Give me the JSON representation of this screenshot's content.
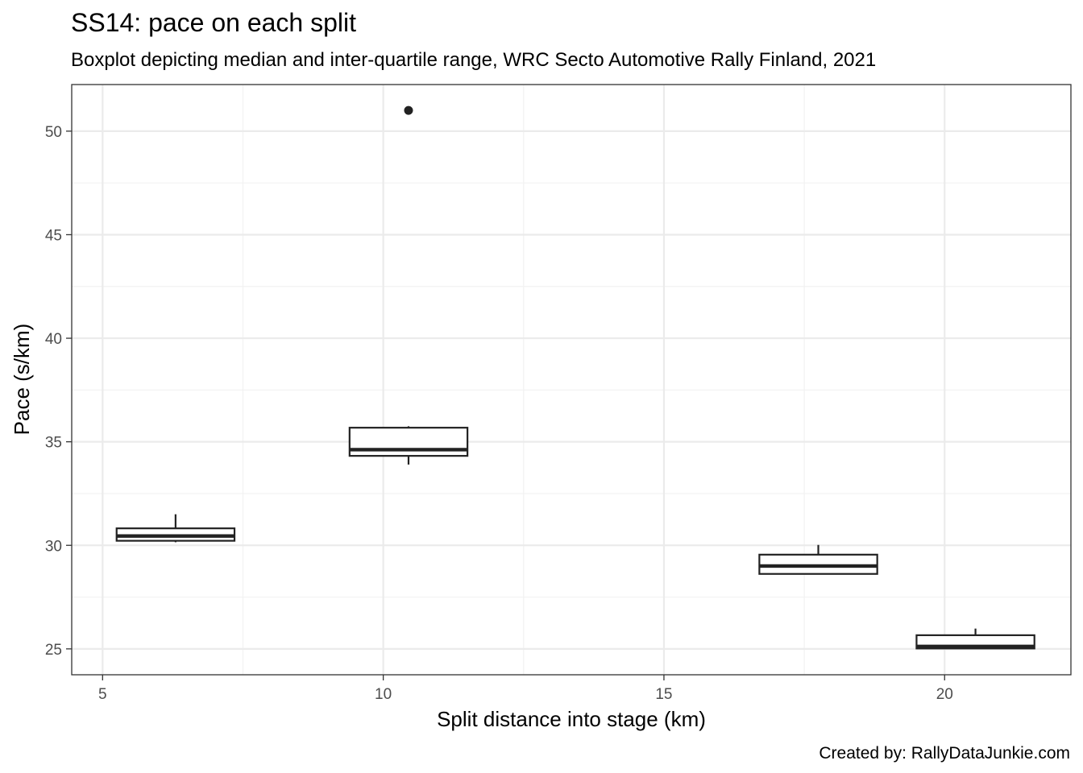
{
  "chart_data": {
    "type": "boxplot",
    "title": "SS14: pace on each split",
    "subtitle": "Boxplot depicting median and inter-quartile range, WRC Secto Automotive Rally Finland, 2021",
    "xlabel": "Split distance into stage (km)",
    "ylabel": "Pace (s/km)",
    "caption": "Created by: RallyDataJunkie.com",
    "xlim": [
      4.45,
      22.25
    ],
    "ylim": [
      23.75,
      52.25
    ],
    "x_ticks": [
      5,
      10,
      15,
      20
    ],
    "y_ticks": [
      25,
      30,
      35,
      40,
      45,
      50
    ],
    "grid": true,
    "boxes": [
      {
        "x": 6.3,
        "width": 2.1,
        "lower_whisker": 30.15,
        "q1": 30.22,
        "median": 30.45,
        "q3": 30.82,
        "upper_whisker": 31.5,
        "outliers": []
      },
      {
        "x": 10.45,
        "width": 2.1,
        "lower_whisker": 33.9,
        "q1": 34.32,
        "median": 34.62,
        "q3": 35.68,
        "upper_whisker": 35.75,
        "outliers": [
          51.0
        ]
      },
      {
        "x": 17.75,
        "width": 2.1,
        "lower_whisker": 28.62,
        "q1": 28.62,
        "median": 29.0,
        "q3": 29.55,
        "upper_whisker": 30.02,
        "outliers": []
      },
      {
        "x": 20.55,
        "width": 2.1,
        "lower_whisker": 25.0,
        "q1": 25.02,
        "median": 25.12,
        "q3": 25.66,
        "upper_whisker": 25.98,
        "outliers": []
      }
    ]
  }
}
